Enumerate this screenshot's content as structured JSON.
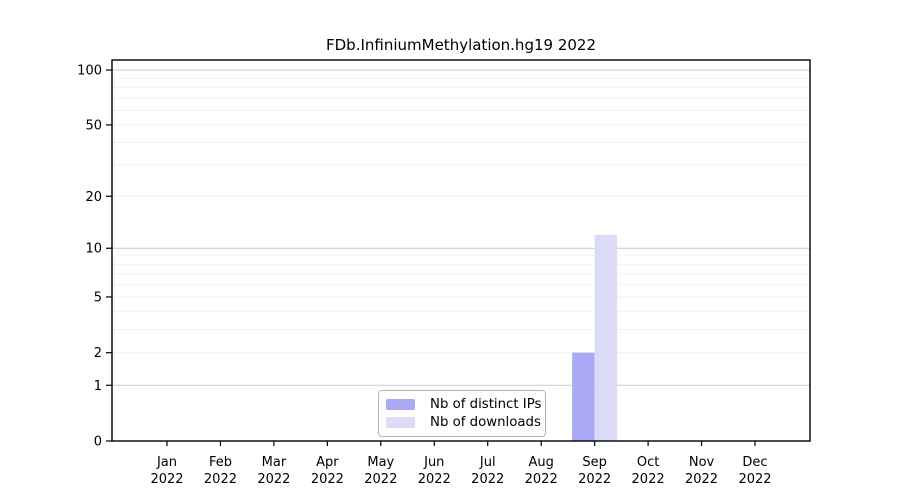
{
  "chart_data": {
    "type": "bar",
    "title": "FDb.InfiniumMethylation.hg19 2022",
    "categories": [
      {
        "month": "Jan",
        "year": "2022"
      },
      {
        "month": "Feb",
        "year": "2022"
      },
      {
        "month": "Mar",
        "year": "2022"
      },
      {
        "month": "Apr",
        "year": "2022"
      },
      {
        "month": "May",
        "year": "2022"
      },
      {
        "month": "Jun",
        "year": "2022"
      },
      {
        "month": "Jul",
        "year": "2022"
      },
      {
        "month": "Aug",
        "year": "2022"
      },
      {
        "month": "Sep",
        "year": "2022"
      },
      {
        "month": "Oct",
        "year": "2022"
      },
      {
        "month": "Nov",
        "year": "2022"
      },
      {
        "month": "Dec",
        "year": "2022"
      }
    ],
    "series": [
      {
        "name": "Nb of distinct IPs",
        "color": "#a9a9f5",
        "values": [
          0,
          0,
          0,
          0,
          0,
          0,
          0,
          0,
          2,
          0,
          0,
          0
        ]
      },
      {
        "name": "Nb of downloads",
        "color": "#dcdcf9",
        "values": [
          0,
          0,
          0,
          0,
          0,
          0,
          0,
          0,
          12,
          0,
          0,
          0
        ]
      }
    ],
    "xlabel": "",
    "ylabel": "",
    "y_scale": "log1p",
    "ylim": [
      0,
      113
    ],
    "y_ticks": [
      0,
      1,
      2,
      5,
      10,
      20,
      50,
      100
    ],
    "y_major_gridlines": [
      1,
      10,
      100
    ],
    "y_minor_gridlines": [
      2,
      3,
      4,
      5,
      6,
      7,
      8,
      9,
      20,
      30,
      40,
      50,
      60,
      70,
      80,
      90
    ],
    "grid": true,
    "legend_position": "bottom-center",
    "colors": {
      "frame": "#000000",
      "major_grid": "#c9c9c9",
      "minor_grid": "#f2f2f2",
      "text": "#000000"
    }
  }
}
